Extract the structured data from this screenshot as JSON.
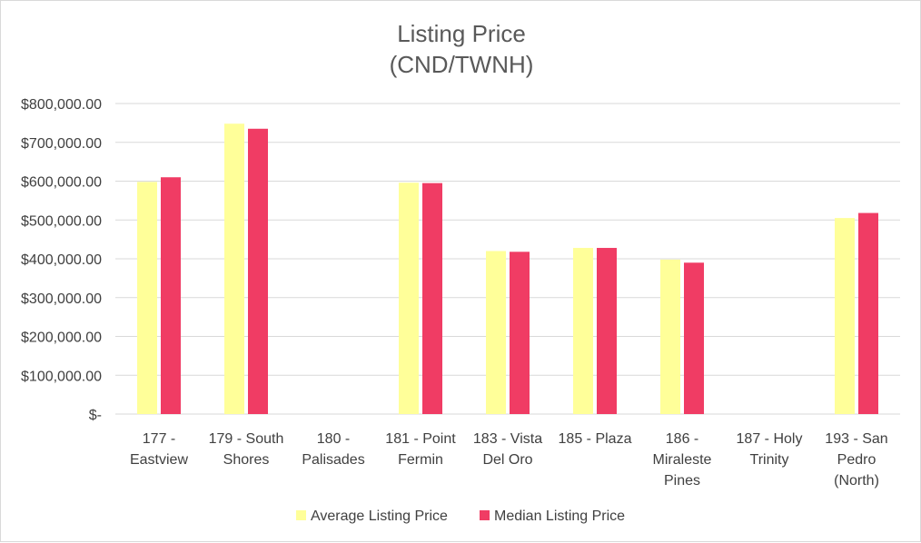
{
  "chart_data": {
    "type": "bar",
    "title_lines": [
      "Listing Price",
      "(CND/TWNH)"
    ],
    "categories": [
      [
        "177 -",
        "Eastview"
      ],
      [
        "179 - South",
        "Shores"
      ],
      [
        "180 -",
        "Palisades"
      ],
      [
        "181 - Point",
        "Fermin"
      ],
      [
        "183 - Vista",
        "Del Oro"
      ],
      [
        "185 - Plaza"
      ],
      [
        "186 -",
        "Miraleste",
        "Pines"
      ],
      [
        "187 - Holy",
        "Trinity"
      ],
      [
        "193 - San",
        "Pedro",
        "(North)"
      ]
    ],
    "series": [
      {
        "name": "Average Listing Price",
        "color": "#ffff99",
        "values": [
          598000,
          748000,
          null,
          596000,
          420000,
          428000,
          398000,
          null,
          505000
        ]
      },
      {
        "name": "Median Listing Price",
        "color": "#f03c64",
        "values": [
          610000,
          735000,
          null,
          595000,
          418000,
          428000,
          390000,
          null,
          518000
        ]
      }
    ],
    "ylim": [
      0,
      800000
    ],
    "yticks": [
      0,
      100000,
      200000,
      300000,
      400000,
      500000,
      600000,
      700000,
      800000
    ],
    "ytick_labels": [
      "$-",
      "$100,000.00",
      "$200,000.00",
      "$300,000.00",
      "$400,000.00",
      "$500,000.00",
      "$600,000.00",
      "$700,000.00",
      "$800,000.00"
    ],
    "grid": true,
    "legend_position": "bottom"
  }
}
